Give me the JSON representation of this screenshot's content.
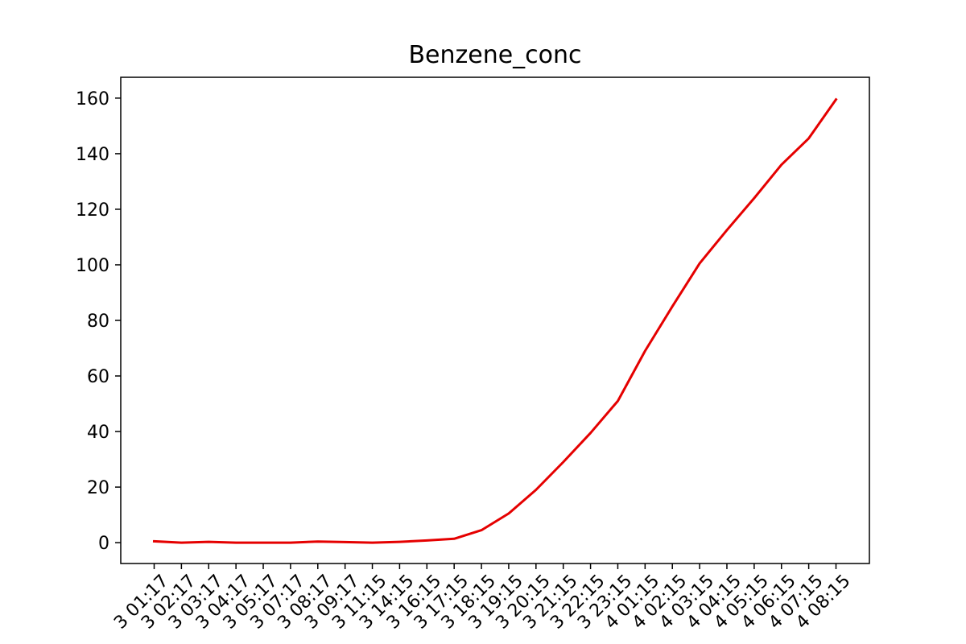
{
  "chart_data": {
    "type": "line",
    "title": "Benzene_conc",
    "xlabel": "",
    "ylabel": "",
    "categories": [
      "3 01:17",
      "3 02:17",
      "3 03:17",
      "3 04:17",
      "3 05:17",
      "3 07:17",
      "3 08:17",
      "3 09:17",
      "3 11:15",
      "3 14:15",
      "3 16:15",
      "3 17:15",
      "3 18:15",
      "3 19:15",
      "3 20:15",
      "3 21:15",
      "3 22:15",
      "3 23:15",
      "4 01:15",
      "4 02:15",
      "4 03:15",
      "4 04:15",
      "4 05:15",
      "4 06:15",
      "4 07:15",
      "4 08:15"
    ],
    "series": [
      {
        "values": [
          0.5,
          0.0,
          0.3,
          0.0,
          0.0,
          0.0,
          0.4,
          0.2,
          0.0,
          0.3,
          0.8,
          1.4,
          4.5,
          10.5,
          19.0,
          29.0,
          39.5,
          51.0,
          69.0,
          85.0,
          100.5,
          112.5,
          124.0,
          136.0,
          145.5,
          159.5
        ],
        "color": "#e50000"
      }
    ],
    "ylim": [
      -7.5,
      167.5
    ],
    "yticks": [
      0,
      20,
      40,
      60,
      80,
      100,
      120,
      140,
      160
    ],
    "grid": false,
    "legend": "none"
  }
}
